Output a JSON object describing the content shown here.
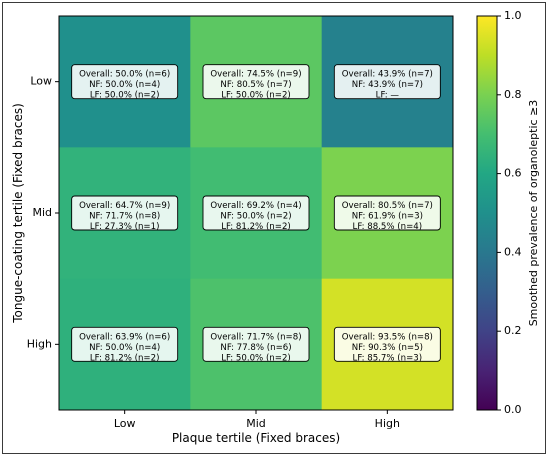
{
  "chart_data": {
    "type": "heatmap",
    "xlabel": "Plaque tertile (Fixed braces)",
    "ylabel": "Tongue-coating tertile (Fixed braces)",
    "x_categories": [
      "Low",
      "Mid",
      "High"
    ],
    "y_categories": [
      "Low",
      "Mid",
      "High"
    ],
    "values": [
      [
        0.5,
        0.745,
        0.439
      ],
      [
        0.647,
        0.692,
        0.805
      ],
      [
        0.639,
        0.717,
        0.935
      ]
    ],
    "annotations": [
      [
        [
          "Overall: 50.0% (n=6)",
          "NF: 50.0% (n=4)",
          "LF: 50.0% (n=2)"
        ],
        [
          "Overall: 74.5% (n=9)",
          "NF: 80.5% (n=7)",
          "LF: 50.0% (n=2)"
        ],
        [
          "Overall: 43.9% (n=7)",
          "NF: 43.9% (n=7)",
          "LF: —"
        ]
      ],
      [
        [
          "Overall: 64.7% (n=9)",
          "NF: 71.7% (n=8)",
          "LF: 27.3% (n=1)"
        ],
        [
          "Overall: 69.2% (n=4)",
          "NF: 50.0% (n=2)",
          "LF: 81.2% (n=2)"
        ],
        [
          "Overall: 80.5% (n=7)",
          "NF: 61.9% (n=3)",
          "LF: 88.5% (n=4)"
        ]
      ],
      [
        [
          "Overall: 63.9% (n=6)",
          "NF: 50.0% (n=4)",
          "LF: 81.2% (n=2)"
        ],
        [
          "Overall: 71.7% (n=8)",
          "NF: 77.8% (n=6)",
          "LF: 50.0% (n=2)"
        ],
        [
          "Overall: 93.5% (n=8)",
          "NF: 90.3% (n=5)",
          "LF: 85.7% (n=3)"
        ]
      ]
    ],
    "colorbar": {
      "label": "Smoothed prevalence of organoleptic ≥3",
      "range": [
        0.0,
        1.0
      ],
      "ticks": [
        0.0,
        0.2,
        0.4,
        0.6,
        0.8,
        1.0
      ],
      "tick_labels": [
        "0.0",
        "0.2",
        "0.4",
        "0.6",
        "0.8",
        "1.0"
      ],
      "colormap": "viridis"
    },
    "grid": false
  }
}
